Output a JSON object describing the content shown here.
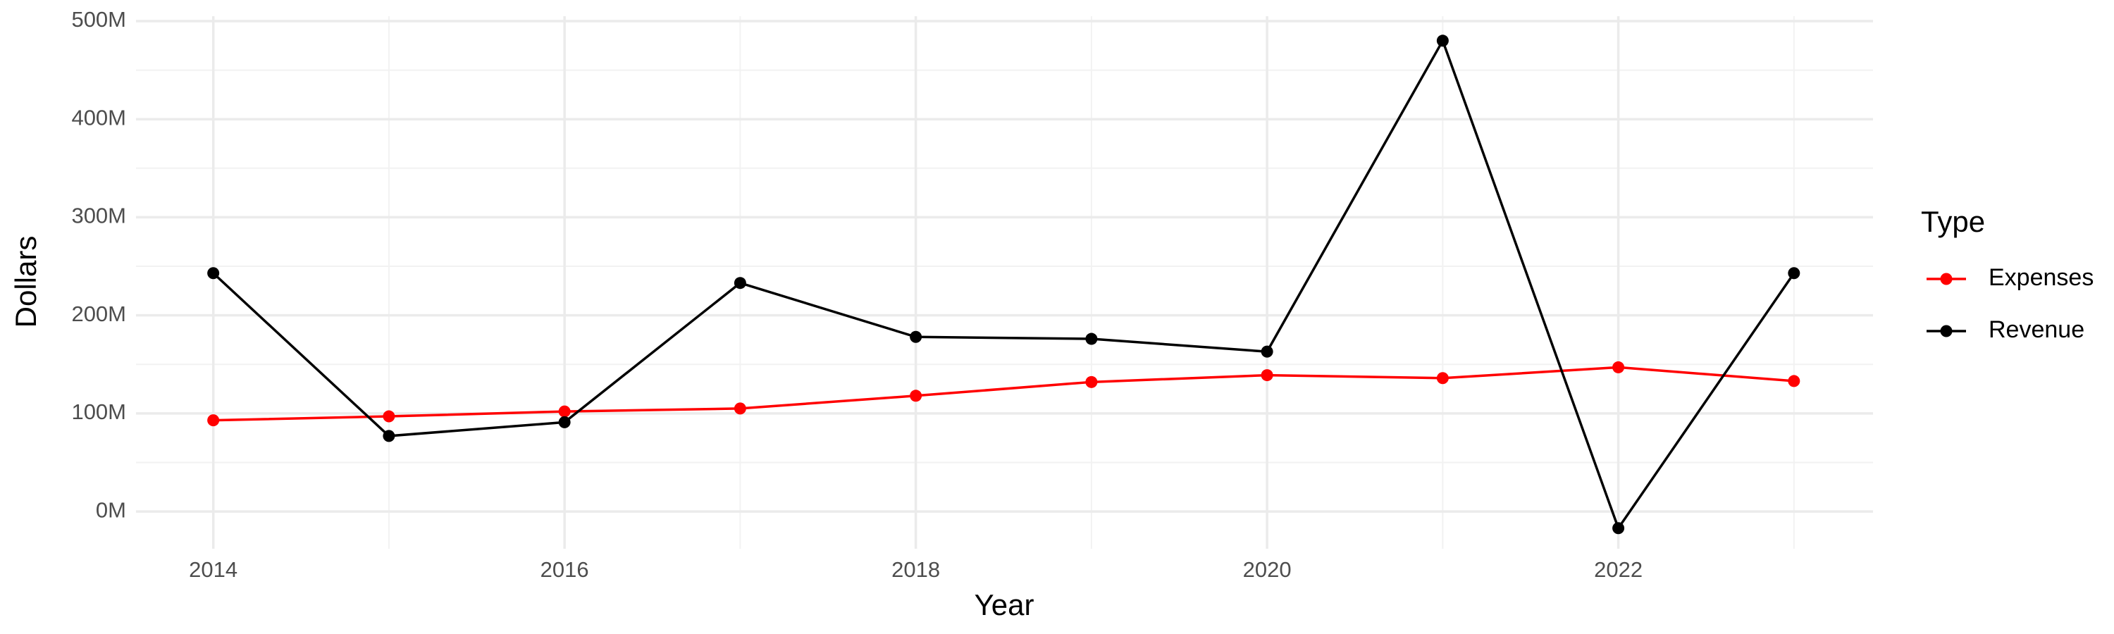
{
  "chart_data": {
    "type": "line",
    "x_label": "Year",
    "y_label": "Dollars",
    "legend_title": "Type",
    "x": [
      2014,
      2015,
      2016,
      2017,
      2018,
      2019,
      2020,
      2021,
      2022,
      2023
    ],
    "series": [
      {
        "name": "Expenses",
        "color": "#ff0000",
        "values": [
          93000000,
          97000000,
          102000000,
          105000000,
          118000000,
          132000000,
          139000000,
          136000000,
          147000000,
          133000000
        ]
      },
      {
        "name": "Revenue",
        "color": "#000000",
        "values": [
          243000000,
          77000000,
          91000000,
          233000000,
          178000000,
          176000000,
          163000000,
          480000000,
          -17000000,
          243000000
        ]
      }
    ],
    "xlim": [
      2013.56,
      2023.45
    ],
    "xticks": [
      2014,
      2016,
      2018,
      2020,
      2022
    ],
    "ylim": [
      -38000000,
      505000000
    ],
    "yticks": [
      {
        "value": 0,
        "label": "0M"
      },
      {
        "value": 100000000,
        "label": "100M"
      },
      {
        "value": 200000000,
        "label": "200M"
      },
      {
        "value": 300000000,
        "label": "300M"
      },
      {
        "value": 400000000,
        "label": "400M"
      },
      {
        "value": 500000000,
        "label": "500M"
      }
    ],
    "grid": true,
    "legend_position": "right"
  }
}
